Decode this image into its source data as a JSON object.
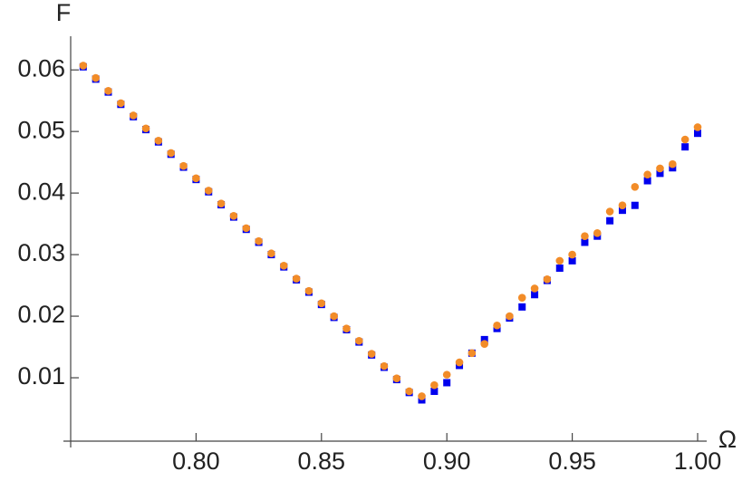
{
  "chart_data": {
    "type": "scatter",
    "x_label": "Ω",
    "y_label": "F",
    "x": [
      0.755,
      0.76,
      0.765,
      0.77,
      0.775,
      0.78,
      0.785,
      0.79,
      0.795,
      0.8,
      0.805,
      0.81,
      0.815,
      0.82,
      0.825,
      0.83,
      0.835,
      0.84,
      0.845,
      0.85,
      0.855,
      0.86,
      0.865,
      0.87,
      0.875,
      0.88,
      0.885,
      0.89,
      0.895,
      0.9,
      0.905,
      0.91,
      0.915,
      0.92,
      0.925,
      0.93,
      0.935,
      0.94,
      0.945,
      0.95,
      0.955,
      0.96,
      0.965,
      0.97,
      0.975,
      0.98,
      0.985,
      0.99,
      0.995,
      1.0
    ],
    "series": [
      {
        "color": "#0000ee",
        "marker": "square",
        "values": [
          0.0605,
          0.0585,
          0.0564,
          0.0544,
          0.0524,
          0.0503,
          0.0483,
          0.0463,
          0.0442,
          0.0422,
          0.0402,
          0.0381,
          0.0361,
          0.0341,
          0.032,
          0.03,
          0.028,
          0.0259,
          0.0239,
          0.0219,
          0.0198,
          0.0178,
          0.0158,
          0.0137,
          0.0117,
          0.0097,
          0.0076,
          0.0064,
          0.0078,
          0.0092,
          0.012,
          0.014,
          0.0162,
          0.018,
          0.0197,
          0.0215,
          0.0235,
          0.0258,
          0.0278,
          0.029,
          0.032,
          0.033,
          0.0355,
          0.0372,
          0.038,
          0.042,
          0.0432,
          0.0441,
          0.0475,
          0.0497
        ]
      },
      {
        "color": "#f28c28",
        "marker": "circle",
        "values": [
          0.0607,
          0.0587,
          0.0566,
          0.0546,
          0.0526,
          0.0505,
          0.0485,
          0.0465,
          0.0444,
          0.0424,
          0.0404,
          0.0383,
          0.0363,
          0.0343,
          0.0322,
          0.0302,
          0.0282,
          0.0261,
          0.0241,
          0.0221,
          0.02,
          0.018,
          0.016,
          0.0139,
          0.0119,
          0.0099,
          0.0078,
          0.007,
          0.0088,
          0.0105,
          0.0125,
          0.014,
          0.0155,
          0.0185,
          0.02,
          0.023,
          0.0245,
          0.026,
          0.029,
          0.03,
          0.033,
          0.0335,
          0.037,
          0.038,
          0.041,
          0.043,
          0.044,
          0.0447,
          0.0487,
          0.0507
        ]
      }
    ],
    "xlim": [
      0.75,
      1.0
    ],
    "ylim": [
      0,
      0.064
    ],
    "xticks": [
      {
        "value": 0.8,
        "label": "0.80"
      },
      {
        "value": 0.85,
        "label": "0.85"
      },
      {
        "value": 0.9,
        "label": "0.90"
      },
      {
        "value": 0.95,
        "label": "0.95"
      },
      {
        "value": 1.0,
        "label": "1.00"
      }
    ],
    "yticks": [
      0.01,
      0.02,
      0.03,
      0.04,
      0.05,
      0.06
    ]
  }
}
